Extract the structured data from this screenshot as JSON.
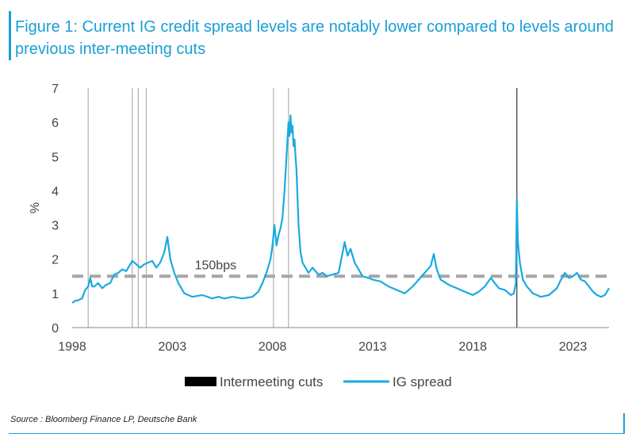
{
  "figure": {
    "title": "Figure 1: Current IG credit spread levels are notably lower compared to levels around previous inter-meeting cuts",
    "source": "Source : Bloomberg Finance LP, Deutsche Bank"
  },
  "colors": {
    "accent": "#1a9fd6",
    "series": "#1aaae0",
    "cuts": "#000000",
    "reference": "#a6a6a6"
  },
  "chart_data": {
    "type": "line",
    "title": "Figure 1: Current IG credit spread levels are notably lower compared to levels around previous inter-meeting cuts",
    "xlabel": "",
    "ylabel": "%",
    "xlim": [
      1998,
      2024.8
    ],
    "ylim": [
      0,
      7
    ],
    "x_ticks": [
      "1998",
      "2003",
      "2008",
      "2013",
      "2018",
      "2023"
    ],
    "y_ticks": [
      "0",
      "1",
      "2",
      "3",
      "4",
      "5",
      "6",
      "7"
    ],
    "grid": false,
    "legend_position": "bottom",
    "legend": [
      "Intermeeting cuts",
      "IG spread"
    ],
    "reference_line": {
      "y": 1.5,
      "label": "150bps",
      "style": "dashed"
    },
    "intermeeting_cuts": [
      1998.8,
      2001.0,
      2001.3,
      2001.7,
      2008.05,
      2008.8,
      2020.2
    ],
    "series": [
      {
        "name": "IG spread",
        "x": [
          1998.0,
          1998.15,
          1998.3,
          1998.5,
          1998.65,
          1998.8,
          1998.9,
          1999.0,
          1999.1,
          1999.3,
          1999.5,
          1999.7,
          1999.9,
          2000.1,
          2000.3,
          2000.5,
          2000.7,
          2000.9,
          2001.0,
          2001.2,
          2001.4,
          2001.6,
          2001.8,
          2002.0,
          2002.2,
          2002.4,
          2002.6,
          2002.75,
          2002.9,
          2003.1,
          2003.3,
          2003.6,
          2004.0,
          2004.5,
          2005.0,
          2005.3,
          2005.6,
          2006.0,
          2006.5,
          2007.0,
          2007.3,
          2007.5,
          2007.7,
          2007.9,
          2008.0,
          2008.1,
          2008.2,
          2008.3,
          2008.4,
          2008.5,
          2008.6,
          2008.7,
          2008.8,
          2008.85,
          2008.9,
          2008.95,
          2009.0,
          2009.05,
          2009.1,
          2009.15,
          2009.2,
          2009.25,
          2009.3,
          2009.4,
          2009.5,
          2009.6,
          2009.8,
          2010.0,
          2010.3,
          2010.5,
          2010.7,
          2011.0,
          2011.3,
          2011.6,
          2011.75,
          2011.9,
          2012.1,
          2012.3,
          2012.5,
          2012.8,
          2013.0,
          2013.4,
          2013.8,
          2014.2,
          2014.6,
          2015.0,
          2015.3,
          2015.6,
          2015.9,
          2016.05,
          2016.2,
          2016.4,
          2016.8,
          2017.2,
          2017.6,
          2018.0,
          2018.3,
          2018.6,
          2018.9,
          2019.1,
          2019.3,
          2019.6,
          2019.9,
          2020.05,
          2020.15,
          2020.2,
          2020.25,
          2020.35,
          2020.5,
          2020.7,
          2021.0,
          2021.4,
          2021.8,
          2022.2,
          2022.4,
          2022.6,
          2022.8,
          2023.0,
          2023.2,
          2023.4,
          2023.6,
          2023.8,
          2024.0,
          2024.2,
          2024.4,
          2024.6,
          2024.8
        ],
        "values": [
          0.72,
          0.78,
          0.8,
          0.85,
          1.1,
          1.2,
          1.45,
          1.2,
          1.2,
          1.3,
          1.15,
          1.25,
          1.3,
          1.55,
          1.6,
          1.7,
          1.65,
          1.85,
          1.95,
          1.85,
          1.75,
          1.85,
          1.9,
          1.95,
          1.75,
          1.9,
          2.2,
          2.65,
          2.0,
          1.6,
          1.3,
          1.0,
          0.9,
          0.95,
          0.85,
          0.9,
          0.85,
          0.9,
          0.85,
          0.9,
          1.05,
          1.3,
          1.6,
          2.0,
          2.4,
          3.0,
          2.4,
          2.7,
          2.9,
          3.2,
          4.0,
          5.0,
          6.0,
          5.6,
          6.2,
          5.7,
          5.9,
          5.3,
          5.5,
          5.0,
          4.6,
          3.8,
          3.0,
          2.2,
          1.9,
          1.8,
          1.6,
          1.75,
          1.55,
          1.6,
          1.5,
          1.55,
          1.6,
          2.5,
          2.1,
          2.3,
          1.9,
          1.7,
          1.5,
          1.45,
          1.4,
          1.35,
          1.2,
          1.1,
          1.0,
          1.2,
          1.4,
          1.6,
          1.8,
          2.15,
          1.7,
          1.4,
          1.25,
          1.15,
          1.05,
          0.95,
          1.05,
          1.2,
          1.45,
          1.3,
          1.15,
          1.1,
          0.95,
          1.0,
          1.3,
          3.75,
          2.5,
          1.9,
          1.4,
          1.2,
          1.0,
          0.9,
          0.95,
          1.15,
          1.4,
          1.6,
          1.45,
          1.5,
          1.6,
          1.4,
          1.35,
          1.2,
          1.05,
          0.95,
          0.9,
          0.95,
          1.15
        ]
      }
    ]
  }
}
